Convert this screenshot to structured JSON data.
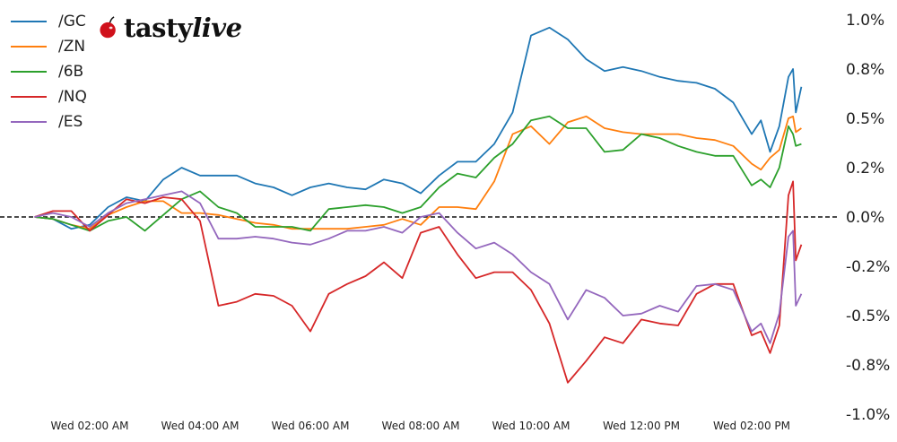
{
  "logo": {
    "text": "tastylive",
    "part1": "tasty",
    "part2": "live"
  },
  "chart_data": {
    "type": "line",
    "title": "",
    "xlabel": "",
    "ylabel": "",
    "y_unit": "%",
    "ylim": [
      -1.0,
      1.0
    ],
    "y_ticks": [
      1.0,
      0.75,
      0.5,
      0.25,
      0.0,
      -0.25,
      -0.5,
      -0.75,
      -1.0
    ],
    "y_tick_labels": [
      "1.0%",
      "0.8%",
      "0.5%",
      "0.2%",
      "0.0%",
      "-0.2%",
      "-0.5%",
      "-0.8%",
      "-1.0%"
    ],
    "y_axis_side": "right",
    "x_ticks": [
      "02:00",
      "04:00",
      "06:00",
      "08:00",
      "10:00",
      "12:00",
      "14:00"
    ],
    "x_tick_labels": [
      "Wed 02:00 AM",
      "Wed 04:00 AM",
      "Wed 06:00 AM",
      "Wed 08:00 AM",
      "Wed 10:00 AM",
      "Wed 12:00 PM",
      "Wed 02:00 PM"
    ],
    "grid": false,
    "zero_line": "dashed",
    "legend_position": "top-left",
    "x": [
      "01:00",
      "01:20",
      "01:40",
      "02:00",
      "02:20",
      "02:40",
      "03:00",
      "03:20",
      "03:40",
      "04:00",
      "04:20",
      "04:40",
      "05:00",
      "05:20",
      "05:40",
      "06:00",
      "06:20",
      "06:40",
      "07:00",
      "07:20",
      "07:40",
      "08:00",
      "08:20",
      "08:40",
      "09:00",
      "09:20",
      "09:40",
      "10:00",
      "10:20",
      "10:40",
      "11:00",
      "11:20",
      "11:40",
      "12:00",
      "12:20",
      "12:40",
      "13:00",
      "13:20",
      "13:40",
      "14:00",
      "14:10",
      "14:20",
      "14:30",
      "14:40",
      "14:45",
      "14:48",
      "14:54"
    ],
    "series": [
      {
        "name": "/GC",
        "color": "#1f77b4",
        "values": [
          0.0,
          -0.01,
          -0.06,
          -0.04,
          0.05,
          0.1,
          0.08,
          0.19,
          0.25,
          0.21,
          0.21,
          0.21,
          0.17,
          0.15,
          0.11,
          0.15,
          0.17,
          0.15,
          0.14,
          0.19,
          0.17,
          0.12,
          0.21,
          0.28,
          0.28,
          0.37,
          0.53,
          0.92,
          0.96,
          0.9,
          0.8,
          0.74,
          0.76,
          0.74,
          0.71,
          0.69,
          0.68,
          0.65,
          0.58,
          0.42,
          0.49,
          0.33,
          0.46,
          0.71,
          0.75,
          0.53,
          0.66
        ]
      },
      {
        "name": "/ZN",
        "color": "#ff7f0e",
        "values": [
          0.0,
          -0.01,
          -0.04,
          -0.06,
          0.01,
          0.05,
          0.08,
          0.08,
          0.02,
          0.02,
          0.01,
          -0.01,
          -0.03,
          -0.04,
          -0.06,
          -0.06,
          -0.06,
          -0.06,
          -0.05,
          -0.04,
          -0.01,
          -0.04,
          0.05,
          0.05,
          0.04,
          0.18,
          0.42,
          0.46,
          0.37,
          0.48,
          0.51,
          0.45,
          0.43,
          0.42,
          0.42,
          0.42,
          0.4,
          0.39,
          0.36,
          0.27,
          0.24,
          0.3,
          0.34,
          0.5,
          0.51,
          0.43,
          0.45
        ]
      },
      {
        "name": "/6B",
        "color": "#2ca02c",
        "values": [
          0.0,
          -0.01,
          -0.04,
          -0.07,
          -0.02,
          0.0,
          -0.07,
          0.01,
          0.09,
          0.13,
          0.05,
          0.02,
          -0.05,
          -0.05,
          -0.05,
          -0.07,
          0.04,
          0.05,
          0.06,
          0.05,
          0.02,
          0.05,
          0.15,
          0.22,
          0.2,
          0.3,
          0.37,
          0.49,
          0.51,
          0.45,
          0.45,
          0.33,
          0.34,
          0.42,
          0.4,
          0.36,
          0.33,
          0.31,
          0.31,
          0.16,
          0.19,
          0.15,
          0.25,
          0.46,
          0.42,
          0.36,
          0.37
        ]
      },
      {
        "name": "/NQ",
        "color": "#d62728",
        "values": [
          0.0,
          0.03,
          0.03,
          -0.07,
          0.01,
          0.09,
          0.07,
          0.1,
          0.09,
          -0.02,
          -0.45,
          -0.43,
          -0.39,
          -0.4,
          -0.45,
          -0.58,
          -0.39,
          -0.34,
          -0.3,
          -0.23,
          -0.31,
          -0.08,
          -0.05,
          -0.19,
          -0.31,
          -0.28,
          -0.28,
          -0.37,
          -0.54,
          -0.84,
          -0.73,
          -0.61,
          -0.64,
          -0.52,
          -0.54,
          -0.55,
          -0.39,
          -0.34,
          -0.34,
          -0.6,
          -0.58,
          -0.69,
          -0.55,
          0.11,
          0.18,
          -0.22,
          -0.14
        ]
      },
      {
        "name": "/ES",
        "color": "#9467bd",
        "values": [
          0.0,
          0.02,
          0.0,
          -0.05,
          0.02,
          0.07,
          0.09,
          0.11,
          0.13,
          0.07,
          -0.11,
          -0.11,
          -0.1,
          -0.11,
          -0.13,
          -0.14,
          -0.11,
          -0.07,
          -0.07,
          -0.05,
          -0.08,
          0.0,
          0.02,
          -0.08,
          -0.16,
          -0.13,
          -0.19,
          -0.28,
          -0.34,
          -0.52,
          -0.37,
          -0.41,
          -0.5,
          -0.49,
          -0.45,
          -0.48,
          -0.35,
          -0.34,
          -0.37,
          -0.58,
          -0.54,
          -0.64,
          -0.49,
          -0.1,
          -0.07,
          -0.45,
          -0.39
        ]
      }
    ]
  }
}
